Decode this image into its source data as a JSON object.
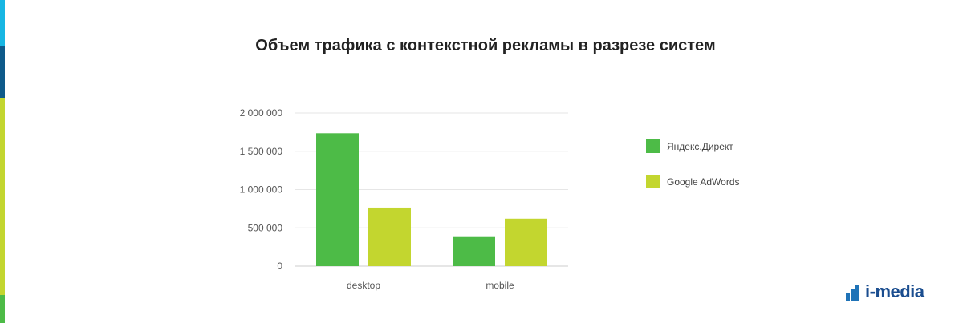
{
  "brand": {
    "logo_text": "i-media",
    "stripe_colors": [
      "#17b6e3",
      "#0e5a8a",
      "#c3d62f",
      "#4dbb47"
    ]
  },
  "chart_data": {
    "type": "bar",
    "title": "Объем трафика с контекстной рекламы в разрезе систем",
    "xlabel": "",
    "ylabel": "",
    "categories": [
      "desktop",
      "mobile"
    ],
    "series": [
      {
        "name": "Яндекс.Директ",
        "color": "#4dbb47",
        "values": [
          1735000,
          380000
        ]
      },
      {
        "name": "Google AdWords",
        "color": "#c3d62f",
        "values": [
          765000,
          620000
        ]
      }
    ],
    "ylim": [
      0,
      2000000
    ],
    "yticks": [
      0,
      500000,
      1000000,
      1500000,
      2000000
    ],
    "ytick_labels": [
      "0",
      "500 000",
      "1 000 000",
      "1 500 000",
      "2 000 000"
    ],
    "grid": true,
    "legend_position": "right"
  }
}
